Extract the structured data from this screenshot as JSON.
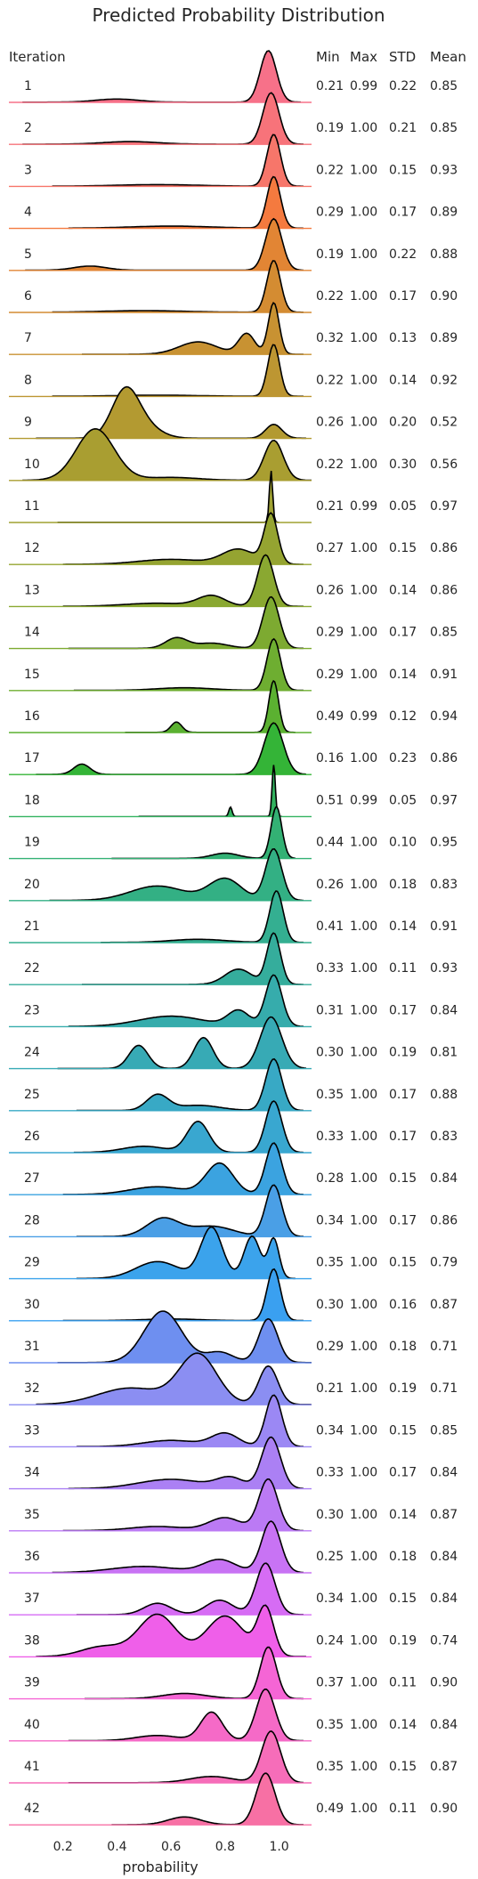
{
  "chart_data": {
    "type": "ridgeline",
    "title": "Predicted Probability Distribution",
    "xlabel": "probability",
    "xlim": [
      0.0,
      1.12
    ],
    "x_ticks": [
      0.2,
      0.4,
      0.6,
      0.8,
      1.0
    ],
    "x_tick_labels": [
      "0.2",
      "0.4",
      "0.6",
      "0.8",
      "1.0"
    ],
    "row_header": "Iteration",
    "stat_headers": [
      "Min",
      "Max",
      "STD",
      "Mean"
    ],
    "rows": [
      {
        "iteration": "1",
        "min": "0.21",
        "max": "0.99",
        "std": "0.22",
        "mean": "0.85",
        "color": "#f77189",
        "peaks": [
          [
            0.96,
            0.03,
            1.0
          ],
          [
            0.4,
            0.08,
            0.06
          ]
        ],
        "range": [
          0.05,
          1.08
        ]
      },
      {
        "iteration": "2",
        "min": "0.19",
        "max": "1.00",
        "std": "0.21",
        "mean": "0.85",
        "color": "#f7737a",
        "peaks": [
          [
            0.97,
            0.03,
            1.0
          ],
          [
            0.45,
            0.1,
            0.05
          ]
        ],
        "range": [
          0.05,
          1.09
        ]
      },
      {
        "iteration": "3",
        "min": "0.22",
        "max": "1.00",
        "std": "0.15",
        "mean": "0.93",
        "color": "#f7766a",
        "peaks": [
          [
            0.98,
            0.025,
            1.0
          ],
          [
            0.55,
            0.15,
            0.03
          ]
        ],
        "range": [
          0.16,
          1.09
        ]
      },
      {
        "iteration": "4",
        "min": "0.29",
        "max": "1.00",
        "std": "0.17",
        "mean": "0.89",
        "color": "#f47a3f",
        "peaks": [
          [
            0.98,
            0.025,
            1.0
          ],
          [
            0.6,
            0.15,
            0.04
          ]
        ],
        "range": [
          0.22,
          1.09
        ]
      },
      {
        "iteration": "5",
        "min": "0.19",
        "max": "1.00",
        "std": "0.22",
        "mean": "0.88",
        "color": "#e28534",
        "peaks": [
          [
            0.98,
            0.03,
            1.0
          ],
          [
            0.3,
            0.06,
            0.08
          ]
        ],
        "range": [
          0.06,
          1.09
        ]
      },
      {
        "iteration": "6",
        "min": "0.22",
        "max": "1.00",
        "std": "0.17",
        "mean": "0.90",
        "color": "#d48c32",
        "peaks": [
          [
            0.98,
            0.025,
            1.0
          ],
          [
            0.5,
            0.15,
            0.03
          ]
        ],
        "range": [
          0.16,
          1.09
        ]
      },
      {
        "iteration": "7",
        "min": "0.32",
        "max": "1.00",
        "std": "0.13",
        "mean": "0.89",
        "color": "#c89232",
        "peaks": [
          [
            0.98,
            0.02,
            1.0
          ],
          [
            0.88,
            0.03,
            0.4
          ],
          [
            0.7,
            0.07,
            0.24
          ]
        ],
        "range": [
          0.27,
          1.09
        ]
      },
      {
        "iteration": "8",
        "min": "0.22",
        "max": "1.00",
        "std": "0.14",
        "mean": "0.92",
        "color": "#bd9632",
        "peaks": [
          [
            0.98,
            0.022,
            1.0
          ],
          [
            0.55,
            0.15,
            0.02
          ]
        ],
        "range": [
          0.16,
          1.09
        ]
      },
      {
        "iteration": "9",
        "min": "0.26",
        "max": "1.00",
        "std": "0.20",
        "mean": "0.52",
        "color": "#b39a31",
        "peaks": [
          [
            0.43,
            0.05,
            0.72
          ],
          [
            0.5,
            0.06,
            0.18
          ],
          [
            0.98,
            0.03,
            0.22
          ]
        ],
        "range": [
          0.1,
          1.1
        ]
      },
      {
        "iteration": "10",
        "min": "0.22",
        "max": "1.00",
        "std": "0.30",
        "mean": "0.56",
        "color": "#a99e31",
        "peaks": [
          [
            0.32,
            0.07,
            0.9
          ],
          [
            0.98,
            0.035,
            0.7
          ],
          [
            0.6,
            0.1,
            0.05
          ]
        ],
        "range": [
          0.05,
          1.12
        ]
      },
      {
        "iteration": "11",
        "min": "0.21",
        "max": "0.99",
        "std": "0.05",
        "mean": "0.97",
        "color": "#9fa131",
        "peaks": [
          [
            0.97,
            0.006,
            1.0
          ]
        ],
        "range": [
          0.18,
          1.0
        ]
      },
      {
        "iteration": "12",
        "min": "0.27",
        "max": "1.00",
        "std": "0.15",
        "mean": "0.86",
        "color": "#95a431",
        "peaks": [
          [
            0.97,
            0.025,
            1.0
          ],
          [
            0.85,
            0.06,
            0.3
          ],
          [
            0.6,
            0.12,
            0.1
          ]
        ],
        "range": [
          0.2,
          1.09
        ]
      },
      {
        "iteration": "13",
        "min": "0.26",
        "max": "1.00",
        "std": "0.14",
        "mean": "0.86",
        "color": "#8aa831",
        "peaks": [
          [
            0.95,
            0.03,
            1.0
          ],
          [
            0.75,
            0.05,
            0.2
          ],
          [
            0.55,
            0.12,
            0.06
          ]
        ],
        "range": [
          0.2,
          1.09
        ]
      },
      {
        "iteration": "14",
        "min": "0.29",
        "max": "1.00",
        "std": "0.17",
        "mean": "0.85",
        "color": "#7daa31",
        "peaks": [
          [
            0.97,
            0.03,
            1.0
          ],
          [
            0.62,
            0.04,
            0.2
          ],
          [
            0.75,
            0.06,
            0.1
          ]
        ],
        "range": [
          0.22,
          1.09
        ]
      },
      {
        "iteration": "15",
        "min": "0.29",
        "max": "1.00",
        "std": "0.14",
        "mean": "0.91",
        "color": "#6eae31",
        "peaks": [
          [
            0.98,
            0.025,
            1.0
          ],
          [
            0.65,
            0.1,
            0.05
          ]
        ],
        "range": [
          0.24,
          1.09
        ]
      },
      {
        "iteration": "16",
        "min": "0.49",
        "max": "0.99",
        "std": "0.12",
        "mean": "0.94",
        "color": "#5bb131",
        "peaks": [
          [
            0.98,
            0.018,
            1.0
          ],
          [
            0.62,
            0.02,
            0.2
          ]
        ],
        "range": [
          0.43,
          1.06
        ]
      },
      {
        "iteration": "17",
        "min": "0.16",
        "max": "1.00",
        "std": "0.23",
        "mean": "0.86",
        "color": "#34b437",
        "peaks": [
          [
            0.98,
            0.035,
            1.0
          ],
          [
            0.27,
            0.03,
            0.2
          ]
        ],
        "range": [
          0.1,
          1.1
        ]
      },
      {
        "iteration": "18",
        "min": "0.51",
        "max": "0.99",
        "std": "0.05",
        "mean": "0.97",
        "color": "#32b25f",
        "peaks": [
          [
            0.98,
            0.006,
            1.0
          ],
          [
            0.82,
            0.006,
            0.18
          ]
        ],
        "range": [
          0.48,
          1.01
        ]
      },
      {
        "iteration": "19",
        "min": "0.44",
        "max": "1.00",
        "std": "0.10",
        "mean": "0.95",
        "color": "#33b174",
        "peaks": [
          [
            0.99,
            0.02,
            1.0
          ],
          [
            0.8,
            0.05,
            0.1
          ]
        ],
        "range": [
          0.38,
          1.06
        ]
      },
      {
        "iteration": "20",
        "min": "0.26",
        "max": "1.00",
        "std": "0.18",
        "mean": "0.83",
        "color": "#33b084",
        "peaks": [
          [
            0.98,
            0.03,
            1.0
          ],
          [
            0.8,
            0.06,
            0.42
          ],
          [
            0.55,
            0.1,
            0.28
          ]
        ],
        "range": [
          0.15,
          1.09
        ]
      },
      {
        "iteration": "21",
        "min": "0.41",
        "max": "1.00",
        "std": "0.14",
        "mean": "0.91",
        "color": "#34af91",
        "peaks": [
          [
            0.99,
            0.025,
            1.0
          ],
          [
            0.7,
            0.1,
            0.06
          ]
        ],
        "range": [
          0.34,
          1.09
        ]
      },
      {
        "iteration": "22",
        "min": "0.33",
        "max": "1.00",
        "std": "0.11",
        "mean": "0.93",
        "color": "#35ad9c",
        "peaks": [
          [
            0.98,
            0.025,
            1.0
          ],
          [
            0.85,
            0.05,
            0.3
          ]
        ],
        "range": [
          0.27,
          1.09
        ]
      },
      {
        "iteration": "23",
        "min": "0.31",
        "max": "1.00",
        "std": "0.17",
        "mean": "0.84",
        "color": "#36acac",
        "peaks": [
          [
            0.98,
            0.03,
            1.0
          ],
          [
            0.85,
            0.04,
            0.3
          ],
          [
            0.6,
            0.12,
            0.2
          ]
        ],
        "range": [
          0.22,
          1.09
        ]
      },
      {
        "iteration": "24",
        "min": "0.30",
        "max": "1.00",
        "std": "0.19",
        "mean": "0.81",
        "color": "#37aab5",
        "peaks": [
          [
            0.97,
            0.04,
            1.0
          ],
          [
            0.72,
            0.035,
            0.6
          ],
          [
            0.48,
            0.035,
            0.45
          ]
        ],
        "range": [
          0.18,
          1.1
        ]
      },
      {
        "iteration": "25",
        "min": "0.35",
        "max": "1.00",
        "std": "0.17",
        "mean": "0.88",
        "color": "#38a9c5",
        "peaks": [
          [
            0.98,
            0.03,
            1.0
          ],
          [
            0.55,
            0.04,
            0.3
          ],
          [
            0.7,
            0.08,
            0.1
          ]
        ],
        "range": [
          0.25,
          1.09
        ]
      },
      {
        "iteration": "26",
        "min": "0.33",
        "max": "1.00",
        "std": "0.17",
        "mean": "0.83",
        "color": "#39a7d0",
        "peaks": [
          [
            0.98,
            0.03,
            1.0
          ],
          [
            0.7,
            0.04,
            0.6
          ],
          [
            0.5,
            0.08,
            0.12
          ]
        ],
        "range": [
          0.24,
          1.09
        ]
      },
      {
        "iteration": "27",
        "min": "0.28",
        "max": "1.00",
        "std": "0.15",
        "mean": "0.84",
        "color": "#3ba3e0",
        "peaks": [
          [
            0.98,
            0.03,
            1.0
          ],
          [
            0.78,
            0.05,
            0.6
          ],
          [
            0.55,
            0.1,
            0.15
          ]
        ],
        "range": [
          0.2,
          1.09
        ]
      },
      {
        "iteration": "28",
        "min": "0.34",
        "max": "1.00",
        "std": "0.17",
        "mean": "0.86",
        "color": "#4a9fe6",
        "peaks": [
          [
            0.98,
            0.03,
            1.0
          ],
          [
            0.57,
            0.06,
            0.35
          ],
          [
            0.75,
            0.08,
            0.2
          ]
        ],
        "range": [
          0.25,
          1.09
        ]
      },
      {
        "iteration": "29",
        "min": "0.35",
        "max": "1.00",
        "std": "0.15",
        "mean": "0.79",
        "color": "#3ba3ec",
        "peaks": [
          [
            0.75,
            0.04,
            0.9
          ],
          [
            0.9,
            0.03,
            0.75
          ],
          [
            0.98,
            0.02,
            0.7
          ],
          [
            0.55,
            0.08,
            0.3
          ]
        ],
        "range": [
          0.25,
          1.06
        ]
      },
      {
        "iteration": "30",
        "min": "0.30",
        "max": "1.00",
        "std": "0.16",
        "mean": "0.87",
        "color": "#3aa0f0",
        "peaks": [
          [
            0.98,
            0.025,
            1.0
          ],
          [
            0.6,
            0.1,
            0.03
          ]
        ],
        "range": [
          0.2,
          1.09
        ]
      },
      {
        "iteration": "31",
        "min": "0.29",
        "max": "1.00",
        "std": "0.18",
        "mean": "0.71",
        "color": "#6e8ff0",
        "peaks": [
          [
            0.57,
            0.07,
            1.0
          ],
          [
            0.96,
            0.035,
            0.85
          ],
          [
            0.78,
            0.05,
            0.2
          ]
        ],
        "range": [
          0.18,
          1.12
        ]
      },
      {
        "iteration": "32",
        "min": "0.21",
        "max": "1.00",
        "std": "0.19",
        "mean": "0.71",
        "color": "#8b8ef2",
        "peaks": [
          [
            0.7,
            0.07,
            0.9
          ],
          [
            0.96,
            0.035,
            0.7
          ],
          [
            0.45,
            0.12,
            0.3
          ]
        ],
        "range": [
          0.1,
          1.12
        ]
      },
      {
        "iteration": "33",
        "min": "0.34",
        "max": "1.00",
        "std": "0.15",
        "mean": "0.85",
        "color": "#9b88f4",
        "peaks": [
          [
            0.98,
            0.03,
            1.0
          ],
          [
            0.8,
            0.05,
            0.25
          ],
          [
            0.6,
            0.1,
            0.12
          ]
        ],
        "range": [
          0.25,
          1.09
        ]
      },
      {
        "iteration": "34",
        "min": "0.33",
        "max": "1.00",
        "std": "0.17",
        "mean": "0.84",
        "color": "#ab80f4",
        "peaks": [
          [
            0.97,
            0.035,
            1.0
          ],
          [
            0.6,
            0.12,
            0.18
          ],
          [
            0.82,
            0.05,
            0.2
          ]
        ],
        "range": [
          0.22,
          1.09
        ]
      },
      {
        "iteration": "35",
        "min": "0.30",
        "max": "1.00",
        "std": "0.14",
        "mean": "0.87",
        "color": "#bb7af4",
        "peaks": [
          [
            0.96,
            0.035,
            1.0
          ],
          [
            0.8,
            0.06,
            0.25
          ],
          [
            0.55,
            0.1,
            0.08
          ]
        ],
        "range": [
          0.2,
          1.09
        ]
      },
      {
        "iteration": "36",
        "min": "0.25",
        "max": "1.00",
        "std": "0.18",
        "mean": "0.84",
        "color": "#c873f4",
        "peaks": [
          [
            0.97,
            0.035,
            1.0
          ],
          [
            0.78,
            0.06,
            0.25
          ],
          [
            0.5,
            0.12,
            0.12
          ]
        ],
        "range": [
          0.16,
          1.09
        ]
      },
      {
        "iteration": "37",
        "min": "0.34",
        "max": "1.00",
        "std": "0.15",
        "mean": "0.84",
        "color": "#d66cf4",
        "peaks": [
          [
            0.95,
            0.035,
            1.0
          ],
          [
            0.78,
            0.05,
            0.28
          ],
          [
            0.55,
            0.05,
            0.22
          ]
        ],
        "range": [
          0.25,
          1.09
        ]
      },
      {
        "iteration": "38",
        "min": "0.24",
        "max": "1.00",
        "std": "0.19",
        "mean": "0.74",
        "color": "#ef5fe9",
        "peaks": [
          [
            0.55,
            0.07,
            0.62
          ],
          [
            0.8,
            0.07,
            0.6
          ],
          [
            0.95,
            0.03,
            0.7
          ],
          [
            0.35,
            0.08,
            0.15
          ]
        ],
        "range": [
          0.1,
          1.1
        ]
      },
      {
        "iteration": "39",
        "min": "0.37",
        "max": "1.00",
        "std": "0.11",
        "mean": "0.90",
        "color": "#f565d5",
        "peaks": [
          [
            0.96,
            0.03,
            1.0
          ],
          [
            0.65,
            0.08,
            0.1
          ]
        ],
        "range": [
          0.28,
          1.09
        ]
      },
      {
        "iteration": "40",
        "min": "0.35",
        "max": "1.00",
        "std": "0.14",
        "mean": "0.84",
        "color": "#f56ac7",
        "peaks": [
          [
            0.95,
            0.035,
            1.0
          ],
          [
            0.75,
            0.04,
            0.55
          ],
          [
            0.55,
            0.08,
            0.1
          ]
        ],
        "range": [
          0.22,
          1.09
        ]
      },
      {
        "iteration": "41",
        "min": "0.35",
        "max": "1.00",
        "std": "0.15",
        "mean": "0.87",
        "color": "#f66db9",
        "peaks": [
          [
            0.97,
            0.035,
            1.0
          ],
          [
            0.75,
            0.08,
            0.12
          ]
        ],
        "range": [
          0.22,
          1.09
        ]
      },
      {
        "iteration": "42",
        "min": "0.49",
        "max": "1.00",
        "std": "0.11",
        "mean": "0.90",
        "color": "#f770a4",
        "peaks": [
          [
            0.95,
            0.035,
            1.0
          ],
          [
            0.65,
            0.06,
            0.15
          ]
        ],
        "range": [
          0.38,
          1.09
        ]
      }
    ]
  }
}
